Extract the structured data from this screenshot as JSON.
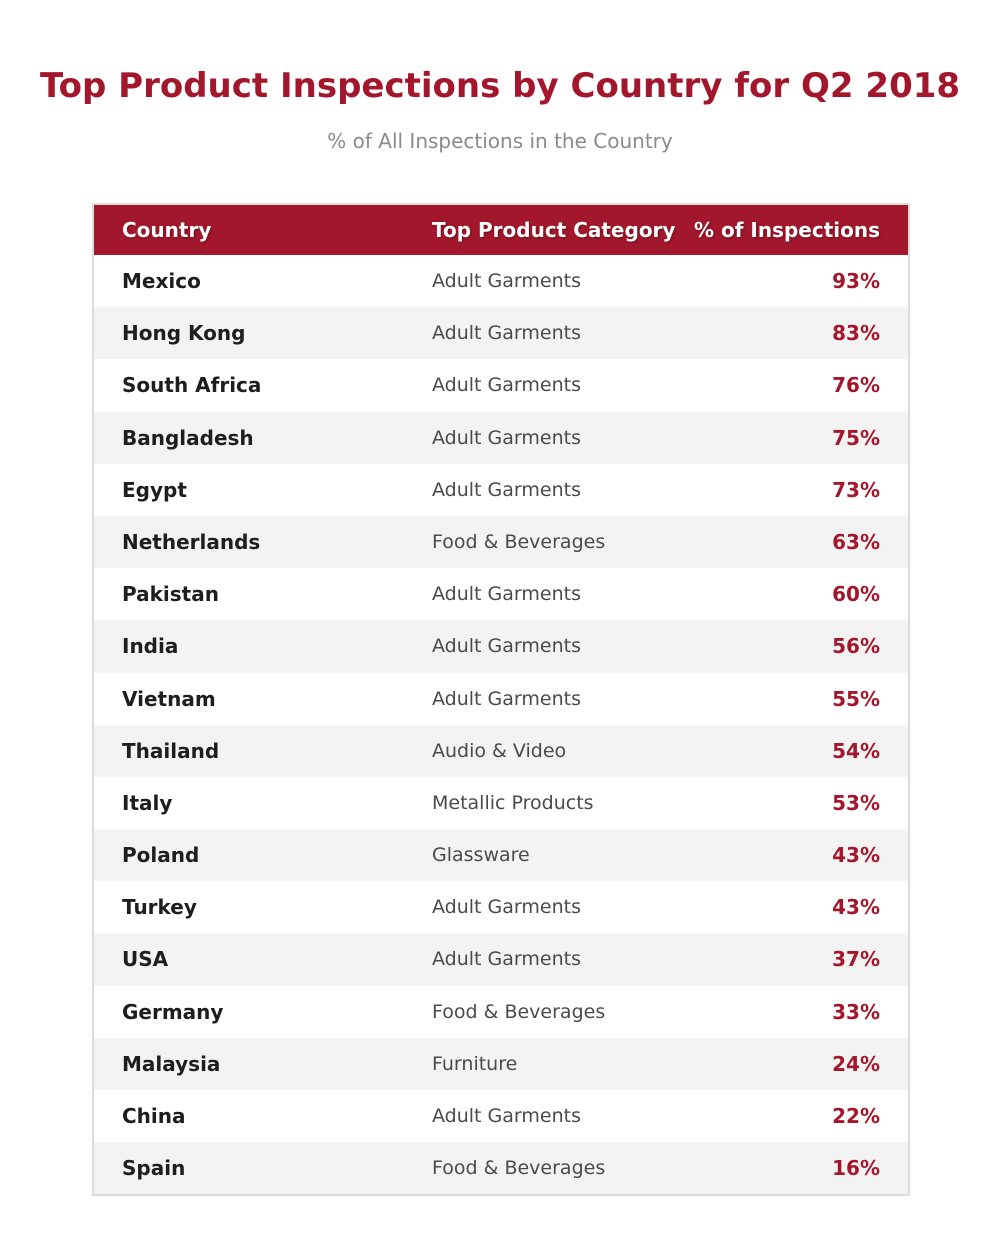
{
  "chart_data": {
    "type": "table",
    "title": "Top Product Inspections by Country for Q2 2018",
    "subtitle": "% of All Inspections in the Country",
    "columns": [
      "Country",
      "Top Product Category",
      "% of Inspections"
    ],
    "rows": [
      {
        "country": "Mexico",
        "category": "Adult Garments",
        "percent": "93%"
      },
      {
        "country": "Hong Kong",
        "category": "Adult Garments",
        "percent": "83%"
      },
      {
        "country": "South Africa",
        "category": "Adult Garments",
        "percent": "76%"
      },
      {
        "country": "Bangladesh",
        "category": "Adult Garments",
        "percent": "75%"
      },
      {
        "country": "Egypt",
        "category": "Adult Garments",
        "percent": "73%"
      },
      {
        "country": "Netherlands",
        "category": "Food & Beverages",
        "percent": "63%"
      },
      {
        "country": "Pakistan",
        "category": "Adult Garments",
        "percent": "60%"
      },
      {
        "country": "India",
        "category": "Adult Garments",
        "percent": "56%"
      },
      {
        "country": "Vietnam",
        "category": "Adult Garments",
        "percent": "55%"
      },
      {
        "country": "Thailand",
        "category": "Audio & Video",
        "percent": "54%"
      },
      {
        "country": "Italy",
        "category": "Metallic Products",
        "percent": "53%"
      },
      {
        "country": "Poland",
        "category": "Glassware",
        "percent": "43%"
      },
      {
        "country": "Turkey",
        "category": "Adult Garments",
        "percent": "43%"
      },
      {
        "country": "USA",
        "category": "Adult Garments",
        "percent": "37%"
      },
      {
        "country": "Germany",
        "category": "Food & Beverages",
        "percent": "33%"
      },
      {
        "country": "Malaysia",
        "category": "Furniture",
        "percent": "24%"
      },
      {
        "country": "China",
        "category": "Adult Garments",
        "percent": "22%"
      },
      {
        "country": "Spain",
        "category": "Food & Beverages",
        "percent": "16%"
      }
    ]
  },
  "colors": {
    "accent": "#a3172c",
    "header_text": "#ffffff",
    "alt_row": "#f3f3f3",
    "subtitle": "#8a8a8a"
  }
}
